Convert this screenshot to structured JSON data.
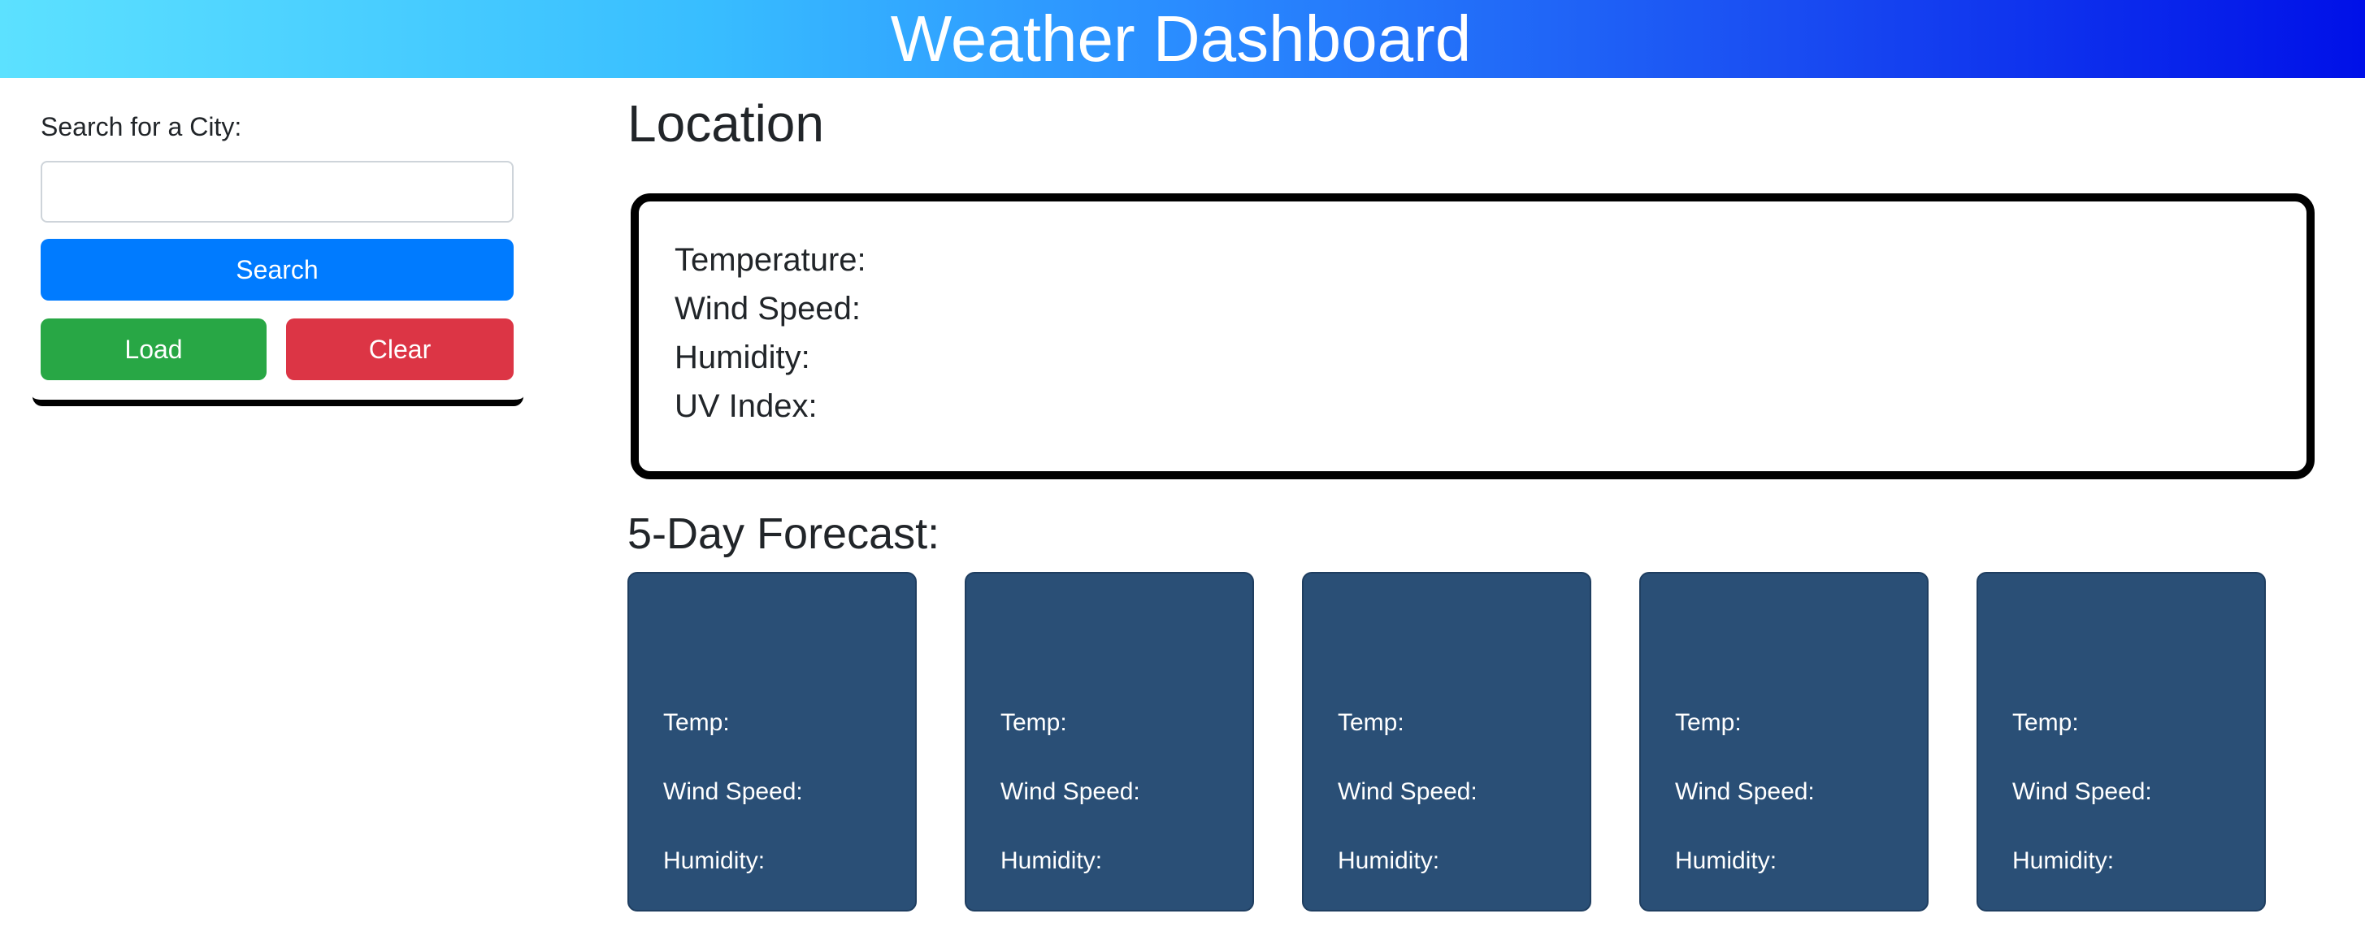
{
  "header": {
    "title": "Weather Dashboard",
    "gradient_start": "#5ce1ff",
    "gradient_end": "#0010e8"
  },
  "sidebar": {
    "search_label": "Search for a City:",
    "search_input_value": "",
    "search_input_placeholder": "",
    "search_button": "Search",
    "load_button": "Load",
    "clear_button": "Clear"
  },
  "current": {
    "location": "Location",
    "temperature_label": "Temperature:",
    "wind_label": "Wind Speed:",
    "humidity_label": "Humidity:",
    "uv_label": "UV Index:"
  },
  "forecast": {
    "title": "5-Day Forecast:",
    "cards": [
      {
        "temp": "Temp:",
        "wind": "Wind Speed:",
        "humidity": "Humidity:"
      },
      {
        "temp": "Temp:",
        "wind": "Wind Speed:",
        "humidity": "Humidity:"
      },
      {
        "temp": "Temp:",
        "wind": "Wind Speed:",
        "humidity": "Humidity:"
      },
      {
        "temp": "Temp:",
        "wind": "Wind Speed:",
        "humidity": "Humidity:"
      },
      {
        "temp": "Temp:",
        "wind": "Wind Speed:",
        "humidity": "Humidity:"
      }
    ]
  },
  "colors": {
    "search_button": "#007bff",
    "load_button": "#28a745",
    "clear_button": "#dc3545",
    "forecast_card": "#2a4f76"
  }
}
